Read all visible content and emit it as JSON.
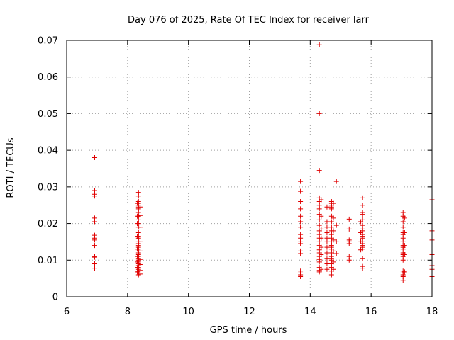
{
  "chart_data": {
    "type": "scatter",
    "title": "Day 076 of 2025, Rate Of TEC Index for receiver larr",
    "xlabel": "GPS time / hours",
    "ylabel": "ROTI / TECUs",
    "xlim": [
      6,
      18
    ],
    "ylim": [
      0,
      0.07
    ],
    "x_ticks": [
      6,
      8,
      10,
      12,
      14,
      16,
      18
    ],
    "y_ticks": [
      0,
      0.01,
      0.02,
      0.03,
      0.04,
      0.05,
      0.06,
      0.07
    ],
    "x_tick_labels": [
      "6",
      "8",
      "10",
      "12",
      "14",
      "16",
      "18"
    ],
    "y_tick_labels": [
      "0",
      "0.01",
      "0.02",
      "0.03",
      "0.04",
      "0.05",
      "0.06",
      "0.07"
    ],
    "grid": true,
    "marker": "plus",
    "color": "#e00000",
    "series": [
      {
        "points": [
          [
            6.92,
            0.038
          ],
          [
            6.92,
            0.029
          ],
          [
            6.92,
            0.028
          ],
          [
            6.92,
            0.0275
          ],
          [
            6.92,
            0.0215
          ],
          [
            6.92,
            0.0205
          ],
          [
            6.92,
            0.0168
          ],
          [
            6.92,
            0.016
          ],
          [
            6.92,
            0.0155
          ],
          [
            6.92,
            0.014
          ],
          [
            6.92,
            0.011
          ],
          [
            6.92,
            0.0108
          ],
          [
            6.92,
            0.009
          ],
          [
            6.92,
            0.0078
          ],
          [
            8.36,
            0.0285
          ],
          [
            8.36,
            0.0275
          ],
          [
            8.36,
            0.026
          ],
          [
            8.36,
            0.0255
          ],
          [
            8.36,
            0.025
          ],
          [
            8.36,
            0.0245
          ],
          [
            8.36,
            0.024
          ],
          [
            8.36,
            0.023
          ],
          [
            8.36,
            0.022
          ],
          [
            8.36,
            0.021
          ],
          [
            8.36,
            0.02
          ],
          [
            8.36,
            0.019
          ],
          [
            8.36,
            0.0175
          ],
          [
            8.36,
            0.0165
          ],
          [
            8.36,
            0.016
          ],
          [
            8.36,
            0.015
          ],
          [
            8.36,
            0.0145
          ],
          [
            8.36,
            0.014
          ],
          [
            8.36,
            0.0135
          ],
          [
            8.36,
            0.013
          ],
          [
            8.36,
            0.0125
          ],
          [
            8.36,
            0.012
          ],
          [
            8.36,
            0.0115
          ],
          [
            8.36,
            0.011
          ],
          [
            8.36,
            0.0105
          ],
          [
            8.36,
            0.01
          ],
          [
            8.36,
            0.0095
          ],
          [
            8.36,
            0.009
          ],
          [
            8.36,
            0.0085
          ],
          [
            8.36,
            0.008
          ],
          [
            8.36,
            0.0075
          ],
          [
            8.36,
            0.007
          ],
          [
            8.36,
            0.0065
          ],
          [
            8.36,
            0.006
          ],
          [
            8.32,
            0.0255
          ],
          [
            8.32,
            0.022
          ],
          [
            8.32,
            0.02
          ],
          [
            8.32,
            0.0165
          ],
          [
            8.32,
            0.013
          ],
          [
            8.32,
            0.011
          ],
          [
            8.32,
            0.0095
          ],
          [
            8.32,
            0.008
          ],
          [
            8.32,
            0.0068
          ],
          [
            8.41,
            0.0245
          ],
          [
            8.41,
            0.0222
          ],
          [
            8.41,
            0.019
          ],
          [
            8.41,
            0.015
          ],
          [
            8.41,
            0.0125
          ],
          [
            8.41,
            0.0102
          ],
          [
            8.41,
            0.0088
          ],
          [
            8.41,
            0.0072
          ],
          [
            8.41,
            0.0062
          ],
          [
            13.68,
            0.0315
          ],
          [
            13.68,
            0.0288
          ],
          [
            13.68,
            0.026
          ],
          [
            13.68,
            0.024
          ],
          [
            13.68,
            0.022
          ],
          [
            13.68,
            0.0205
          ],
          [
            13.68,
            0.019
          ],
          [
            13.68,
            0.017
          ],
          [
            13.68,
            0.016
          ],
          [
            13.68,
            0.015
          ],
          [
            13.68,
            0.0145
          ],
          [
            13.68,
            0.0125
          ],
          [
            13.68,
            0.0118
          ],
          [
            13.68,
            0.007
          ],
          [
            13.68,
            0.0065
          ],
          [
            13.68,
            0.006
          ],
          [
            13.68,
            0.0055
          ],
          [
            14.3,
            0.0688
          ],
          [
            14.3,
            0.05
          ],
          [
            14.3,
            0.0345
          ],
          [
            14.3,
            0.027
          ],
          [
            14.3,
            0.026
          ],
          [
            14.3,
            0.025
          ],
          [
            14.3,
            0.024
          ],
          [
            14.3,
            0.0225
          ],
          [
            14.3,
            0.021
          ],
          [
            14.3,
            0.0195
          ],
          [
            14.3,
            0.018
          ],
          [
            14.3,
            0.017
          ],
          [
            14.3,
            0.016
          ],
          [
            14.3,
            0.015
          ],
          [
            14.3,
            0.014
          ],
          [
            14.3,
            0.0128
          ],
          [
            14.3,
            0.012
          ],
          [
            14.3,
            0.011
          ],
          [
            14.3,
            0.0102
          ],
          [
            14.3,
            0.0095
          ],
          [
            14.3,
            0.008
          ],
          [
            14.3,
            0.0072
          ],
          [
            14.3,
            0.0068
          ],
          [
            14.36,
            0.0265
          ],
          [
            14.36,
            0.022
          ],
          [
            14.36,
            0.0185
          ],
          [
            14.36,
            0.016
          ],
          [
            14.36,
            0.0135
          ],
          [
            14.36,
            0.0115
          ],
          [
            14.36,
            0.0098
          ],
          [
            14.36,
            0.0075
          ],
          [
            14.55,
            0.0245
          ],
          [
            14.55,
            0.0205
          ],
          [
            14.55,
            0.019
          ],
          [
            14.55,
            0.0175
          ],
          [
            14.55,
            0.016
          ],
          [
            14.55,
            0.015
          ],
          [
            14.55,
            0.0135
          ],
          [
            14.55,
            0.012
          ],
          [
            14.55,
            0.0105
          ],
          [
            14.55,
            0.009
          ],
          [
            14.55,
            0.0075
          ],
          [
            14.7,
            0.026
          ],
          [
            14.7,
            0.0255
          ],
          [
            14.7,
            0.025
          ],
          [
            14.7,
            0.0245
          ],
          [
            14.7,
            0.024
          ],
          [
            14.7,
            0.022
          ],
          [
            14.7,
            0.0205
          ],
          [
            14.7,
            0.019
          ],
          [
            14.7,
            0.018
          ],
          [
            14.7,
            0.017
          ],
          [
            14.7,
            0.016
          ],
          [
            14.7,
            0.015
          ],
          [
            14.7,
            0.014
          ],
          [
            14.7,
            0.0135
          ],
          [
            14.7,
            0.013
          ],
          [
            14.7,
            0.012
          ],
          [
            14.7,
            0.011
          ],
          [
            14.7,
            0.0105
          ],
          [
            14.7,
            0.01
          ],
          [
            14.7,
            0.009
          ],
          [
            14.7,
            0.008
          ],
          [
            14.7,
            0.007
          ],
          [
            14.7,
            0.006
          ],
          [
            14.76,
            0.0255
          ],
          [
            14.76,
            0.0215
          ],
          [
            14.76,
            0.018
          ],
          [
            14.76,
            0.0155
          ],
          [
            14.76,
            0.0125
          ],
          [
            14.76,
            0.0095
          ],
          [
            14.76,
            0.0075
          ],
          [
            14.86,
            0.0315
          ],
          [
            14.86,
            0.0195
          ],
          [
            14.86,
            0.015
          ],
          [
            14.86,
            0.0118
          ],
          [
            15.28,
            0.0212
          ],
          [
            15.28,
            0.0185
          ],
          [
            15.28,
            0.0155
          ],
          [
            15.28,
            0.015
          ],
          [
            15.28,
            0.0145
          ],
          [
            15.28,
            0.011
          ],
          [
            15.28,
            0.01
          ],
          [
            15.72,
            0.027
          ],
          [
            15.72,
            0.025
          ],
          [
            15.72,
            0.023
          ],
          [
            15.72,
            0.0225
          ],
          [
            15.72,
            0.021
          ],
          [
            15.72,
            0.0195
          ],
          [
            15.72,
            0.0185
          ],
          [
            15.72,
            0.018
          ],
          [
            15.72,
            0.017
          ],
          [
            15.72,
            0.0165
          ],
          [
            15.72,
            0.016
          ],
          [
            15.72,
            0.015
          ],
          [
            15.72,
            0.0145
          ],
          [
            15.72,
            0.014
          ],
          [
            15.72,
            0.0135
          ],
          [
            15.72,
            0.013
          ],
          [
            15.72,
            0.0105
          ],
          [
            15.72,
            0.0083
          ],
          [
            15.72,
            0.0078
          ],
          [
            15.66,
            0.0205
          ],
          [
            15.66,
            0.0175
          ],
          [
            15.66,
            0.015
          ],
          [
            15.66,
            0.0128
          ],
          [
            17.05,
            0.023
          ],
          [
            17.05,
            0.022
          ],
          [
            17.05,
            0.0205
          ],
          [
            17.05,
            0.019
          ],
          [
            17.05,
            0.0175
          ],
          [
            17.05,
            0.017
          ],
          [
            17.05,
            0.016
          ],
          [
            17.05,
            0.015
          ],
          [
            17.05,
            0.014
          ],
          [
            17.05,
            0.0135
          ],
          [
            17.05,
            0.013
          ],
          [
            17.05,
            0.012
          ],
          [
            17.05,
            0.0115
          ],
          [
            17.05,
            0.011
          ],
          [
            17.05,
            0.01
          ],
          [
            17.05,
            0.007
          ],
          [
            17.05,
            0.0065
          ],
          [
            17.05,
            0.006
          ],
          [
            17.05,
            0.0055
          ],
          [
            17.05,
            0.0045
          ],
          [
            17.1,
            0.0215
          ],
          [
            17.1,
            0.0175
          ],
          [
            17.1,
            0.014
          ],
          [
            17.1,
            0.0115
          ],
          [
            17.1,
            0.0068
          ],
          [
            18.0,
            0.0265
          ],
          [
            18.0,
            0.018
          ],
          [
            18.0,
            0.0155
          ],
          [
            18.0,
            0.0115
          ],
          [
            18.0,
            0.0085
          ],
          [
            18.0,
            0.0075
          ],
          [
            18.0,
            0.0055
          ]
        ]
      }
    ]
  }
}
